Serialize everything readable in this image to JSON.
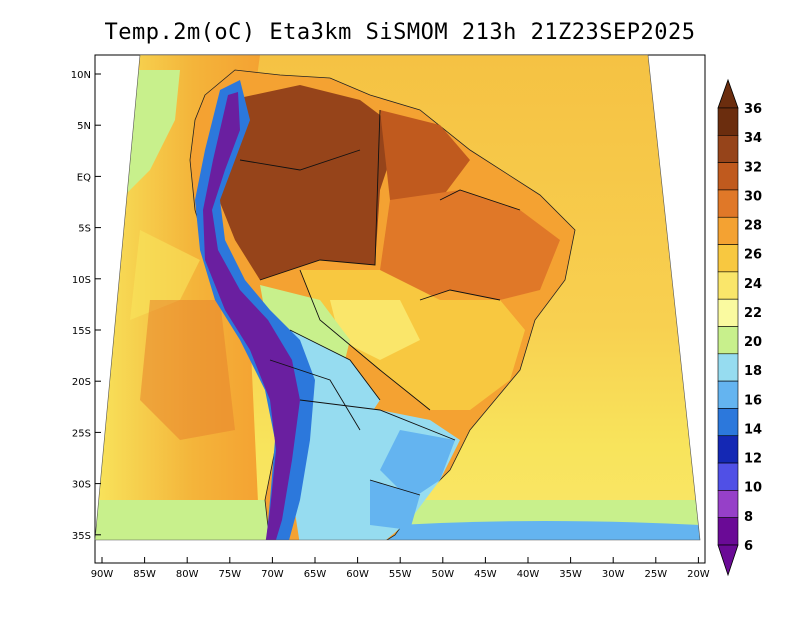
{
  "title": "Temp.2m(oC) Eta3km SiSMOM 213h 21Z23SEP2025",
  "colors": {
    "ocean_warm": "#f5c243",
    "ocean_mid": "#f8e45c",
    "ocean_cool": "#c8f08c",
    "land_hot": "#a0521e",
    "land_warm": "#e07a2a",
    "andes": "#6a1fa0",
    "south_cool": "#4a90e0",
    "frame": "#000000"
  },
  "lat_labels": [
    "10N",
    "5N",
    "EQ",
    "5S",
    "10S",
    "15S",
    "20S",
    "25S",
    "30S",
    "35S"
  ],
  "lon_labels": [
    "90W",
    "85W",
    "80W",
    "75W",
    "70W",
    "65W",
    "60W",
    "55W",
    "50W",
    "45W",
    "40W",
    "35W",
    "30W",
    "25W",
    "20W"
  ],
  "colorbar": {
    "levels": [
      "36",
      "34",
      "32",
      "30",
      "28",
      "26",
      "24",
      "22",
      "20",
      "18",
      "16",
      "14",
      "12",
      "10",
      "8",
      "6"
    ],
    "colors": [
      "#6b2d0e",
      "#96441a",
      "#c05a1e",
      "#e07828",
      "#f4a232",
      "#f8c840",
      "#fae66a",
      "#fafaa0",
      "#c8f08c",
      "#96dcf0",
      "#64b4f0",
      "#2c78dc",
      "#1428b4",
      "#5050e6",
      "#9640c8",
      "#6a0a96"
    ]
  }
}
